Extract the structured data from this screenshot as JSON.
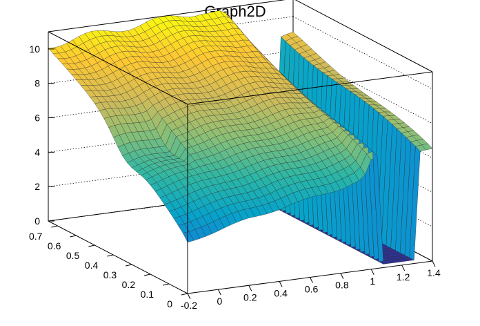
{
  "chart_data": {
    "type": "surface",
    "title": "Graph2D",
    "x_ticks": [
      "-0.2",
      "0",
      "0.2",
      "0.4",
      "0.6",
      "0.8",
      "1",
      "1.2",
      "1.4"
    ],
    "y_ticks": [
      "0",
      "0.1",
      "0.2",
      "0.3",
      "0.4",
      "0.5",
      "0.6",
      "0.7"
    ],
    "z_ticks": [
      "0",
      "2",
      "4",
      "6",
      "8",
      "10"
    ],
    "xlim": [
      -0.2,
      1.4
    ],
    "ylim": [
      0,
      0.75
    ],
    "zlim": [
      0,
      11
    ],
    "grid": true,
    "colormap": [
      "#352a87",
      "#0f5cdd",
      "#1481d6",
      "#06a4ca",
      "#2eb7a4",
      "#87bf77",
      "#d1bb59",
      "#fec832",
      "#f9fb0e"
    ],
    "surface_samples": {
      "x": [
        -0.2,
        0.0,
        0.2,
        0.4,
        0.6,
        0.8,
        0.95,
        1.0,
        1.05
      ],
      "y_front": [
        3.0,
        3.4,
        3.9,
        4.2,
        4.6,
        4.9,
        5.3,
        6.3,
        6.5
      ],
      "y_back": [
        10.2,
        10.4,
        10.6,
        10.7,
        10.9,
        11.0,
        10.7,
        9.8,
        8.9
      ],
      "drop_region_x": [
        1.05,
        1.3
      ],
      "drop_region_z": 0.2
    }
  }
}
